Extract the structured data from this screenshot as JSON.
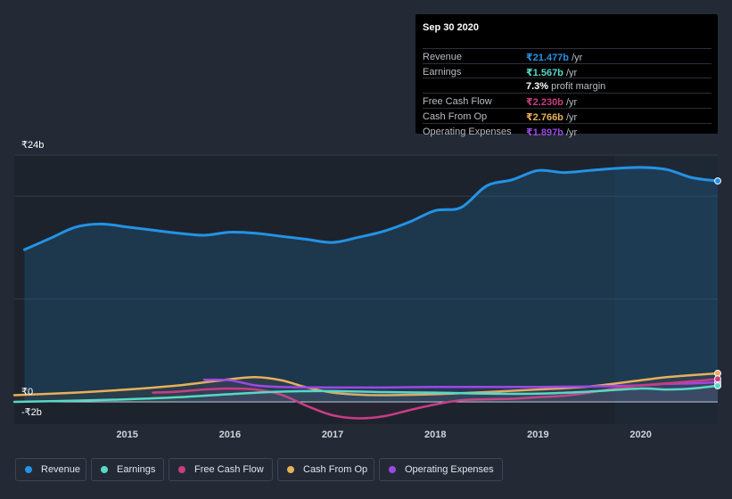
{
  "chart_data": {
    "type": "line",
    "currency": "₹",
    "y_axis": {
      "top_label": "₹24b",
      "zero_label": "₹0",
      "bottom_label": "-₹2b",
      "ylim": [
        -2,
        24
      ]
    },
    "x_ticks": [
      {
        "x": 2015,
        "label": "2015"
      },
      {
        "x": 2016,
        "label": "2016"
      },
      {
        "x": 2017,
        "label": "2017"
      },
      {
        "x": 2018,
        "label": "2018"
      },
      {
        "x": 2019,
        "label": "2019"
      },
      {
        "x": 2020,
        "label": "2020"
      }
    ],
    "xlim": [
      2013.9,
      2020.75
    ],
    "forecast_start": 2019.75,
    "series": [
      {
        "name": "Revenue",
        "color": "#2393e6",
        "fill": true,
        "points": [
          [
            2014.0,
            14.8
          ],
          [
            2014.25,
            15.9
          ],
          [
            2014.5,
            17.0
          ],
          [
            2014.75,
            17.3
          ],
          [
            2015.0,
            17.0
          ],
          [
            2015.25,
            16.7
          ],
          [
            2015.5,
            16.4
          ],
          [
            2015.75,
            16.2
          ],
          [
            2016.0,
            16.5
          ],
          [
            2016.25,
            16.4
          ],
          [
            2016.5,
            16.1
          ],
          [
            2016.75,
            15.8
          ],
          [
            2017.0,
            15.5
          ],
          [
            2017.25,
            16.0
          ],
          [
            2017.5,
            16.6
          ],
          [
            2017.75,
            17.5
          ],
          [
            2018.0,
            18.6
          ],
          [
            2018.25,
            18.9
          ],
          [
            2018.5,
            21.0
          ],
          [
            2018.75,
            21.6
          ],
          [
            2019.0,
            22.5
          ],
          [
            2019.25,
            22.3
          ],
          [
            2019.5,
            22.5
          ],
          [
            2019.75,
            22.7
          ],
          [
            2020.0,
            22.8
          ],
          [
            2020.25,
            22.6
          ],
          [
            2020.5,
            21.8
          ],
          [
            2020.75,
            21.48
          ]
        ]
      },
      {
        "name": "Earnings",
        "color": "#56d9c5",
        "fill": false,
        "points": [
          [
            2013.9,
            0.0
          ],
          [
            2014.5,
            0.12
          ],
          [
            2015.0,
            0.25
          ],
          [
            2015.5,
            0.45
          ],
          [
            2016.0,
            0.75
          ],
          [
            2016.5,
            1.0
          ],
          [
            2017.0,
            1.05
          ],
          [
            2017.5,
            0.95
          ],
          [
            2018.0,
            0.9
          ],
          [
            2018.5,
            0.8
          ],
          [
            2019.0,
            0.8
          ],
          [
            2019.5,
            1.0
          ],
          [
            2020.0,
            1.3
          ],
          [
            2020.25,
            1.2
          ],
          [
            2020.5,
            1.3
          ],
          [
            2020.75,
            1.57
          ]
        ]
      },
      {
        "name": "Free Cash Flow",
        "color": "#c93d83",
        "fill": false,
        "points": [
          [
            2015.25,
            0.9
          ],
          [
            2015.5,
            1.0
          ],
          [
            2015.75,
            1.2
          ],
          [
            2016.0,
            1.3
          ],
          [
            2016.25,
            1.2
          ],
          [
            2016.5,
            0.7
          ],
          [
            2016.75,
            -0.4
          ],
          [
            2017.0,
            -1.3
          ],
          [
            2017.25,
            -1.6
          ],
          [
            2017.5,
            -1.4
          ],
          [
            2017.75,
            -0.8
          ],
          [
            2018.0,
            -0.25
          ],
          [
            2018.25,
            0.15
          ],
          [
            2018.5,
            0.25
          ],
          [
            2018.75,
            0.3
          ],
          [
            2019.0,
            0.45
          ],
          [
            2019.25,
            0.6
          ],
          [
            2019.5,
            0.9
          ],
          [
            2019.75,
            1.3
          ],
          [
            2020.0,
            1.6
          ],
          [
            2020.25,
            1.8
          ],
          [
            2020.5,
            2.0
          ],
          [
            2020.75,
            2.23
          ]
        ]
      },
      {
        "name": "Cash From Op",
        "color": "#e7b05a",
        "fill": false,
        "points": [
          [
            2013.9,
            0.65
          ],
          [
            2014.5,
            0.9
          ],
          [
            2015.0,
            1.2
          ],
          [
            2015.5,
            1.6
          ],
          [
            2016.0,
            2.2
          ],
          [
            2016.25,
            2.4
          ],
          [
            2016.5,
            2.1
          ],
          [
            2016.75,
            1.4
          ],
          [
            2017.0,
            0.9
          ],
          [
            2017.25,
            0.7
          ],
          [
            2017.5,
            0.65
          ],
          [
            2018.0,
            0.75
          ],
          [
            2018.5,
            0.95
          ],
          [
            2019.0,
            1.2
          ],
          [
            2019.5,
            1.5
          ],
          [
            2020.0,
            2.1
          ],
          [
            2020.25,
            2.4
          ],
          [
            2020.5,
            2.6
          ],
          [
            2020.75,
            2.77
          ]
        ]
      },
      {
        "name": "Operating Expenses",
        "color": "#9c49e4",
        "fill": false,
        "points": [
          [
            2015.75,
            2.15
          ],
          [
            2016.0,
            2.1
          ],
          [
            2016.25,
            1.6
          ],
          [
            2016.5,
            1.45
          ],
          [
            2017.0,
            1.4
          ],
          [
            2017.5,
            1.4
          ],
          [
            2018.0,
            1.45
          ],
          [
            2018.5,
            1.45
          ],
          [
            2019.0,
            1.45
          ],
          [
            2019.5,
            1.5
          ],
          [
            2020.0,
            1.6
          ],
          [
            2020.25,
            1.75
          ],
          [
            2020.5,
            1.8
          ],
          [
            2020.75,
            1.9
          ]
        ]
      }
    ]
  },
  "tooltip": {
    "date": "Sep 30 2020",
    "rows": [
      {
        "label": "Revenue",
        "value": "₹21.477b",
        "unit": " /yr",
        "color": "#2393e6"
      },
      {
        "label": "Earnings",
        "value": "₹1.567b",
        "unit": " /yr",
        "color": "#56d9c5"
      },
      {
        "label": "",
        "margin_value": "7.3%",
        "margin_label": " profit margin"
      },
      {
        "label": "Free Cash Flow",
        "value": "₹2.230b",
        "unit": " /yr",
        "color": "#c93d83"
      },
      {
        "label": "Cash From Op",
        "value": "₹2.766b",
        "unit": " /yr",
        "color": "#e7b05a"
      },
      {
        "label": "Operating Expenses",
        "value": "₹1.897b",
        "unit": " /yr",
        "color": "#9c49e4"
      }
    ]
  },
  "legend": [
    {
      "label": "Revenue",
      "color": "#2393e6"
    },
    {
      "label": "Earnings",
      "color": "#56d9c5"
    },
    {
      "label": "Free Cash Flow",
      "color": "#c93d83"
    },
    {
      "label": "Cash From Op",
      "color": "#e7b05a"
    },
    {
      "label": "Operating Expenses",
      "color": "#9c49e4"
    }
  ]
}
